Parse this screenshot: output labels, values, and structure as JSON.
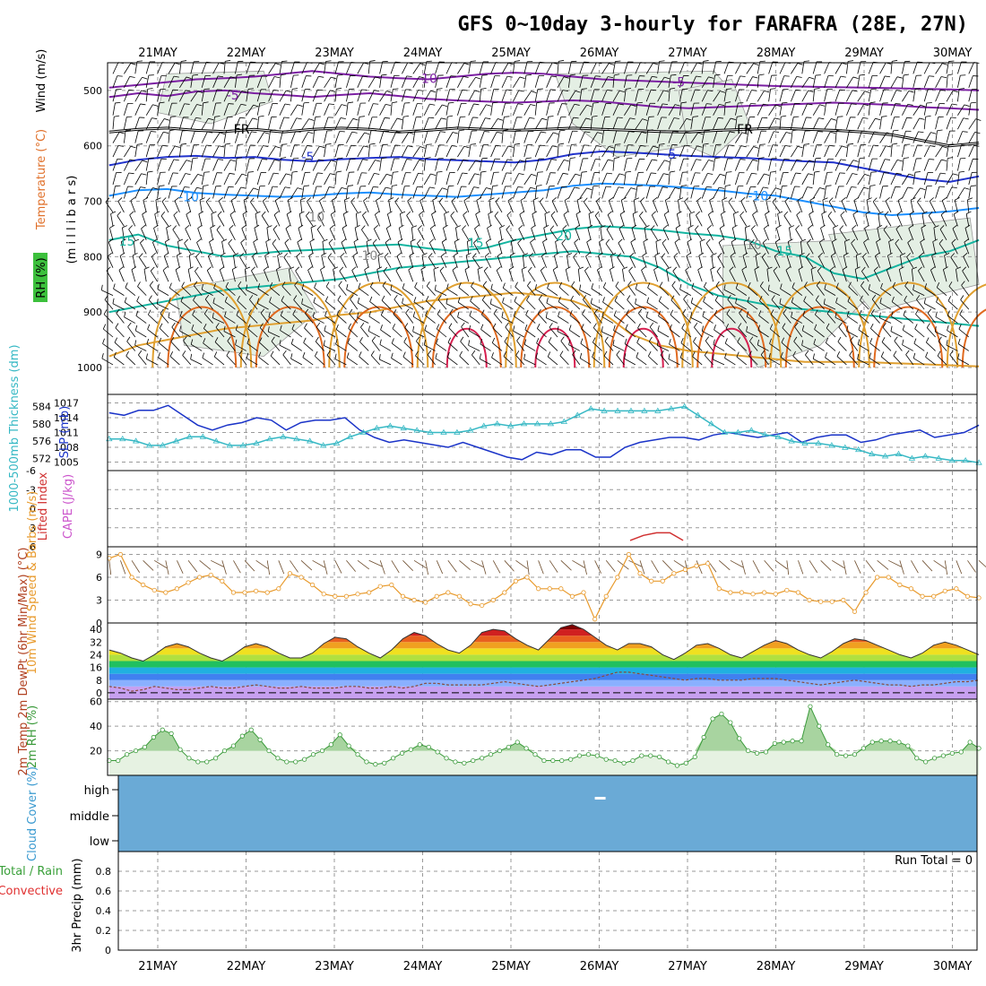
{
  "title": "GFS 0~10day 3-hourly for FARAFRA (28E, 27N)",
  "colors": {
    "temp_contours": [
      "#7b1fa2",
      "#2233cc",
      "#1e90ff",
      "#14b4a0",
      "#e0a030",
      "#e06a20",
      "#d62050",
      "#c00030"
    ],
    "wind_barb": "#000000",
    "rh_shade": "#e4efe4",
    "slp": "#1a33c8",
    "thickness": "#36b8c4",
    "lifted_index": "#d03030",
    "cape": "#cc55cc",
    "wind_speed": "#e89a2c",
    "barbs_10m": "#6b4a2a",
    "rh2m": "#3a9a3a",
    "cloud": "#6aaad6",
    "precip_total": "#3aa03a",
    "precip_conv": "#e03030"
  },
  "chart_data": [
    {
      "type": "contour",
      "panel": "upper_air",
      "dates": [
        "21MAY",
        "22MAY",
        "23MAY",
        "24MAY",
        "25MAY",
        "26MAY",
        "27MAY",
        "28MAY",
        "29MAY",
        "30MAY"
      ],
      "ylabel_main": "(m i l l i b a r s)",
      "ylabel_parts": [
        "Wind (m/s)",
        "Temperature (°C)",
        "RH (%)"
      ],
      "yticks": [
        "500",
        "600",
        "700",
        "800",
        "900",
        "1000"
      ],
      "ylim": [
        1000,
        450
      ],
      "contour_labels": [
        "-10",
        "-5",
        "-5",
        "FR",
        "FR",
        "-5",
        "-5",
        "-10",
        "-10",
        "15",
        "15",
        "20",
        "15",
        "10",
        "10",
        "10"
      ],
      "contours": [
        {
          "level": -10,
          "p": [
            495,
            490,
            485,
            480,
            478,
            475,
            470,
            465,
            470,
            475,
            478,
            480,
            475,
            470,
            468,
            470,
            475,
            480,
            482,
            484,
            486,
            488,
            490,
            492,
            493,
            494,
            495,
            496,
            497,
            498,
            500
          ]
        },
        {
          "level": -5,
          "p": [
            512,
            505,
            510,
            502,
            500,
            505,
            508,
            512,
            508,
            505,
            510,
            515,
            518,
            520,
            522,
            520,
            518,
            520,
            525,
            530,
            532,
            530,
            528,
            526,
            524,
            522,
            524,
            526,
            530,
            532,
            535
          ]
        },
        {
          "level": 0,
          "p": [
            575,
            570,
            568,
            572,
            574,
            570,
            575,
            570,
            568,
            570,
            575,
            572,
            568,
            570,
            572,
            570,
            568,
            570,
            572,
            574,
            575,
            572,
            570,
            568,
            570,
            572,
            575,
            580,
            590,
            600,
            595
          ]
        },
        {
          "level": 5,
          "p": [
            635,
            625,
            620,
            618,
            622,
            620,
            625,
            628,
            624,
            622,
            620,
            624,
            626,
            628,
            630,
            625,
            615,
            610,
            612,
            615,
            618,
            620,
            622,
            625,
            628,
            630,
            640,
            650,
            660,
            665,
            655
          ]
        },
        {
          "level": 10,
          "p": [
            690,
            680,
            678,
            685,
            688,
            690,
            692,
            690,
            686,
            684,
            688,
            690,
            692,
            688,
            684,
            680,
            672,
            668,
            670,
            672,
            676,
            680,
            686,
            690,
            700,
            710,
            720,
            725,
            722,
            718,
            712
          ]
        },
        {
          "level": 15,
          "p": [
            770,
            760,
            780,
            790,
            800,
            795,
            790,
            788,
            785,
            780,
            778,
            785,
            790,
            784,
            770,
            760,
            750,
            745,
            748,
            752,
            758,
            762,
            770,
            790,
            800,
            830,
            840,
            820,
            800,
            790,
            770
          ]
        },
        {
          "level": 20,
          "p": [
            900,
            890,
            880,
            870,
            860,
            855,
            850,
            845,
            840,
            830,
            820,
            815,
            810,
            805,
            800,
            795,
            790,
            795,
            800,
            820,
            850,
            870,
            880,
            890,
            895,
            900,
            905,
            910,
            915,
            920,
            925
          ]
        },
        {
          "level": 25,
          "p": [
            980,
            960,
            950,
            940,
            930,
            925,
            920,
            915,
            905,
            900,
            890,
            880,
            875,
            870,
            865,
            870,
            880,
            900,
            940,
            960,
            970,
            975,
            980,
            985,
            990,
            990,
            990,
            992,
            994,
            996,
            998
          ]
        }
      ]
    },
    {
      "type": "line",
      "panel": "slp_thickness",
      "series": [
        {
          "name": "SLP (mb)",
          "axis": "right",
          "values": [
            1015,
            1014.5,
            1015.5,
            1015.5,
            1016.5,
            1014.5,
            1012.5,
            1011.5,
            1012.5,
            1013,
            1014,
            1013.5,
            1011.5,
            1013,
            1013.5,
            1013.5,
            1014,
            1011.5,
            1010,
            1009,
            1009.5,
            1009,
            1008.5,
            1008,
            1009,
            1008,
            1007,
            1006,
            1005.5,
            1007,
            1006.5,
            1007.5,
            1007.5,
            1006,
            1006,
            1008,
            1009,
            1009.5,
            1010,
            1010,
            1009.5,
            1010.5,
            1011,
            1010.5,
            1010,
            1010.5,
            1011,
            1009,
            1010,
            1010.5,
            1010.5,
            1009,
            1009.5,
            1010.5,
            1011,
            1011.5,
            1010,
            1010.5,
            1011,
            1012.5
          ]
        },
        {
          "name": "1000-500mb Thickness (dm)",
          "axis": "left",
          "values": [
            576.5,
            576.5,
            576,
            575,
            575,
            576,
            577,
            577,
            576,
            575,
            575,
            575.5,
            576.5,
            577,
            576.5,
            576,
            575,
            575.5,
            577,
            578,
            579,
            579.5,
            579,
            578.5,
            578,
            578,
            578,
            578.5,
            579.5,
            580,
            579.5,
            580,
            580,
            580,
            580.5,
            582,
            583.5,
            583,
            583,
            583,
            583,
            583,
            583.5,
            584,
            582,
            580,
            578,
            578,
            578.5,
            577.5,
            577,
            576,
            575.5,
            575.5,
            575,
            574.5,
            574,
            573,
            572.5,
            573,
            572,
            572.5,
            572,
            571.5,
            571.5,
            571
          ]
        }
      ],
      "left_ticks": [
        "584",
        "580",
        "576",
        "572"
      ],
      "right_ticks": [
        "1017",
        "1014",
        "1011",
        "1008",
        "1005"
      ],
      "ylim_slp": [
        1004,
        1018
      ],
      "ylim_thk": [
        570,
        586
      ]
    },
    {
      "type": "line",
      "panel": "stability",
      "ylabel": "Lifted Index",
      "ylabel2": "CAPE (J/kg)",
      "yticks": [
        "-6",
        "-3",
        "0",
        "3",
        "6"
      ],
      "ylim": [
        -6,
        6
      ],
      "series": [
        {
          "name": "Lifted Index",
          "x_days": [
            5.35,
            5.5,
            5.65,
            5.8,
            5.95
          ],
          "values": [
            5,
            4.2,
            3.8,
            3.8,
            5
          ]
        }
      ]
    },
    {
      "type": "line",
      "panel": "wind10m",
      "ylabel": "10m Wind Speed & Barbs (m/s)",
      "yticks": [
        "0",
        "3",
        "6",
        "9"
      ],
      "ylim": [
        0,
        10
      ],
      "series": [
        {
          "name": "10m Wind Speed",
          "values": [
            8.5,
            9,
            6,
            5,
            4.3,
            4,
            4.5,
            5.3,
            6,
            6.3,
            5.5,
            4,
            4,
            4.2,
            4,
            4.5,
            6.5,
            6,
            5,
            3.8,
            3.5,
            3.5,
            3.8,
            4,
            4.8,
            5,
            3.5,
            3,
            2.7,
            3.5,
            4,
            3.5,
            2.5,
            2.3,
            3,
            4,
            5.5,
            6,
            4.5,
            4.5,
            4.5,
            3.5,
            4,
            0.5,
            3.5,
            6,
            9,
            6.5,
            5.5,
            5.5,
            6.5,
            7,
            7.5,
            7.8,
            4.5,
            4,
            4,
            3.8,
            4,
            3.8,
            4.3,
            4,
            3,
            2.8,
            2.8,
            3,
            1.5,
            4,
            6,
            6,
            5,
            4.5,
            3.5,
            3.5,
            4.2,
            4.5,
            3.5,
            3.3
          ]
        }
      ]
    },
    {
      "type": "area",
      "panel": "temp2m",
      "ylabel": "2m Temp 2m DewPt (6hr Min/Max) (°C)",
      "yticks": [
        "40",
        "32",
        "24",
        "16",
        "8",
        "0"
      ],
      "ylim": [
        -4,
        44
      ],
      "series": [
        {
          "name": "2m Temp",
          "values": [
            27,
            25,
            22,
            20,
            24,
            29,
            31,
            29,
            25,
            22,
            20,
            24,
            29,
            31,
            29,
            25,
            22,
            22,
            25,
            31,
            35,
            34,
            29,
            25,
            22,
            27,
            34,
            38,
            36,
            31,
            27,
            25,
            30,
            38,
            40,
            39,
            34,
            30,
            27,
            34,
            41,
            43,
            40,
            35,
            30,
            27,
            31,
            31,
            29,
            24,
            21,
            25,
            30,
            31,
            28,
            24,
            22,
            26,
            30,
            33,
            31,
            27,
            24,
            22,
            26,
            31,
            34,
            33,
            30,
            27,
            24,
            22,
            25,
            30,
            32,
            30,
            27,
            24
          ]
        },
        {
          "name": "2m DewPt",
          "values": [
            4,
            3,
            1,
            2,
            4,
            3,
            2,
            2,
            3,
            4,
            3,
            3,
            4,
            5,
            4,
            3,
            3,
            4,
            3,
            3,
            3,
            4,
            4,
            3,
            3,
            4,
            3,
            4,
            6,
            6,
            5,
            5,
            5,
            5,
            6,
            7,
            6,
            5,
            4,
            5,
            6,
            7,
            8,
            9,
            11,
            13,
            13,
            12,
            11,
            10,
            9,
            8,
            9,
            9,
            8,
            8,
            8,
            9,
            9,
            9,
            8,
            7,
            6,
            5,
            6,
            7,
            8,
            7,
            6,
            5,
            5,
            4,
            5,
            5,
            6,
            7,
            7,
            8
          ]
        }
      ]
    },
    {
      "type": "area",
      "panel": "rh2m",
      "ylabel": "2m RH (%)",
      "yticks": [
        "60",
        "40",
        "20"
      ],
      "ylim": [
        0,
        62
      ],
      "series": [
        {
          "name": "2m RH",
          "values": [
            12,
            12,
            17,
            20,
            23,
            31,
            37,
            34,
            21,
            14,
            11,
            11,
            14,
            20,
            24,
            32,
            37,
            29,
            20,
            14,
            11,
            11,
            13,
            17,
            20,
            25,
            33,
            24,
            17,
            11,
            9,
            10,
            14,
            18,
            21,
            25,
            23,
            19,
            14,
            11,
            10,
            12,
            14,
            17,
            20,
            23,
            27,
            22,
            17,
            12,
            12,
            12,
            13,
            16,
            17,
            16,
            13,
            12,
            10,
            12,
            16,
            16,
            15,
            11,
            8,
            10,
            15,
            31,
            46,
            50,
            43,
            30,
            20,
            18,
            19,
            26,
            27,
            28,
            28,
            56,
            40,
            25,
            17,
            16,
            17,
            22,
            27,
            28,
            28,
            27,
            24,
            14,
            11,
            14,
            16,
            18,
            19,
            27,
            22
          ]
        }
      ]
    },
    {
      "type": "heatmap",
      "panel": "cloud",
      "ylabel": "Cloud Cover (%)",
      "levels": [
        "high",
        "middle",
        "low"
      ],
      "fill_pct": 100
    },
    {
      "type": "bar",
      "panel": "precip",
      "ylabel": "3hr Precip (mm)",
      "legend_total": "Total / Rain",
      "legend_conv": "Convective",
      "yticks": [
        "0.8",
        "0.6",
        "0.4",
        "0.2",
        "0"
      ],
      "ylim": [
        0,
        1
      ],
      "values": [],
      "run_total": "Run Total = 0"
    }
  ]
}
